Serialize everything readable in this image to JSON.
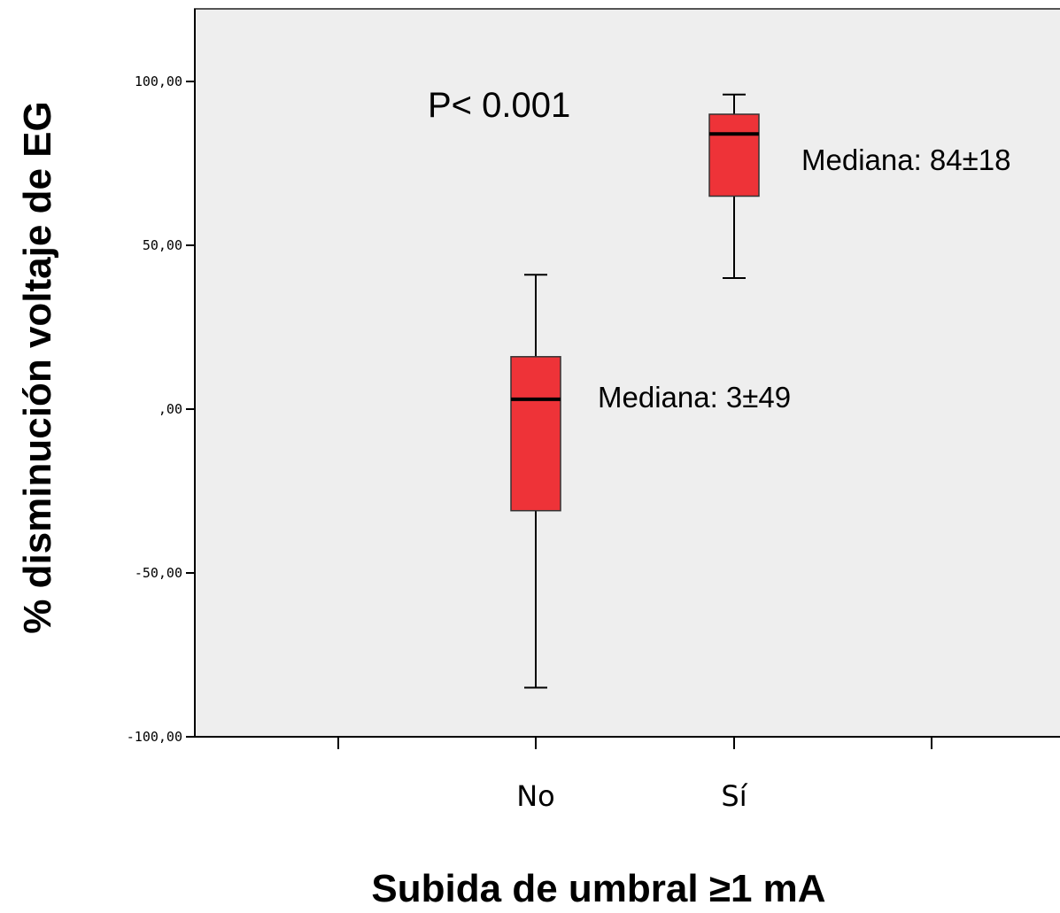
{
  "chart_data": {
    "type": "box",
    "ylabel": "% disminución voltaje de EG",
    "xlabel": "Subida de umbral ≥1 mA",
    "ylim": [
      -100,
      120
    ],
    "yticks": [
      {
        "value": 100,
        "label": "100,00"
      },
      {
        "value": 50,
        "label": "50,00"
      },
      {
        "value": 0,
        "label": ",00"
      },
      {
        "value": -50,
        "label": "-50,00"
      },
      {
        "value": -100,
        "label": "-100,00"
      }
    ],
    "categories": [
      "No",
      "Sí"
    ],
    "boxes": [
      {
        "category": "No",
        "min": -85,
        "q1": -31,
        "median": 3,
        "q3": 16,
        "max": 41,
        "annotation": "Mediana: 3±49"
      },
      {
        "category": "Sí",
        "min": 40,
        "q1": 65,
        "median": 84,
        "q3": 90,
        "max": 96,
        "annotation": "Mediana: 84±18"
      }
    ],
    "pvalue_label": "P< 0.001",
    "grid": false,
    "box_color": "#ee3338",
    "plot_background": "#eeeeee"
  }
}
